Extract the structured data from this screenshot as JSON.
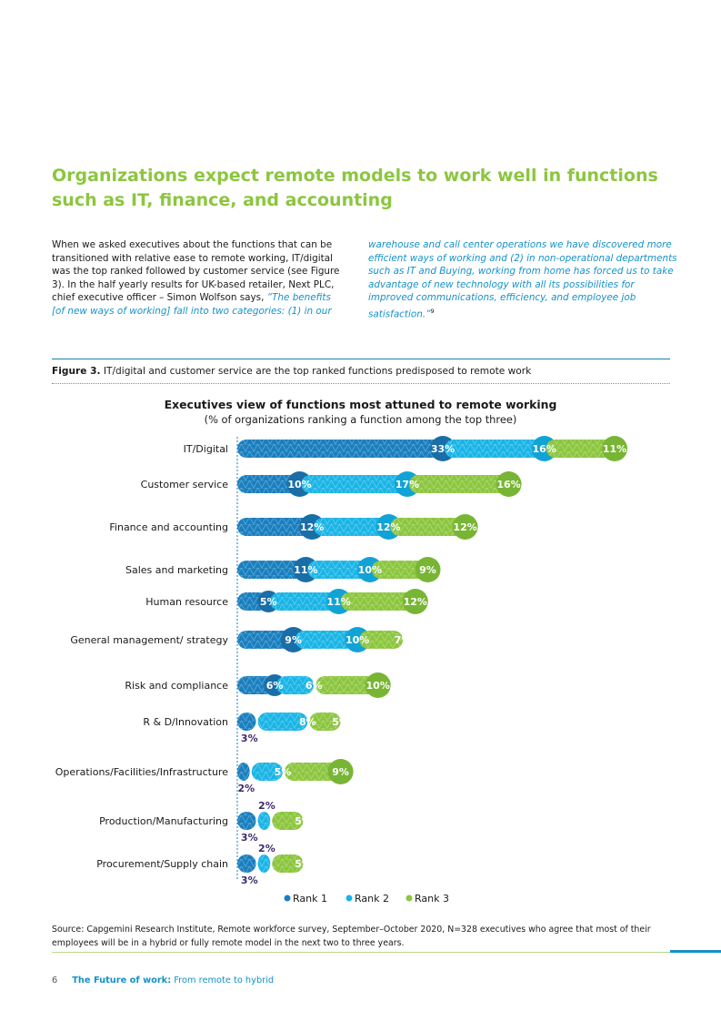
{
  "heading": "Organizations expect remote models to work well in functions such as IT, finance, and accounting",
  "body": {
    "left_text": "When we asked executives about the functions that can be transitioned with relative ease to remote working, IT/digital was the top ranked followed by customer service (see Figure 3). In the half yearly results for UK-based retailer, Next PLC, chief executive officer – Simon Wolfson says, ",
    "left_quote": "“The benefits [of new ways of working] fall into two categories: (1) in our",
    "right_quote": "warehouse and call center operations we have discovered more efficient ways of working and (2) in non-operational departments such as IT and Buying, working from home has forced us to take advantage of new technology with all its possibilities for improved communications, efficiency, and employee job satisfaction.”",
    "footnote": "9"
  },
  "figure": {
    "label": "Figure 3.",
    "caption": "IT/digital and customer service are the top ranked functions predisposed to remote work"
  },
  "chart_data": {
    "type": "bar",
    "stacked": true,
    "orientation": "horizontal",
    "title": "Executives view of functions most attuned to remote working",
    "subtitle": "(% of organizations ranking a function among the top three)",
    "unit": "%",
    "categories": [
      "IT/Digital",
      "Customer service",
      "Finance and accounting",
      "Sales and marketing",
      "Human resource",
      "General management/ strategy",
      "Risk and compliance",
      "R & D/Innovation",
      "Operations/Facilities/Infrastructure",
      "Production/Manufacturing",
      "Procurement/Supply chain"
    ],
    "series": [
      {
        "name": "Rank 1",
        "color": "#1a7fbf",
        "values": [
          33,
          10,
          12,
          11,
          5,
          9,
          6,
          3,
          2,
          3,
          3
        ]
      },
      {
        "name": "Rank 2",
        "color": "#1ab5e6",
        "values": [
          16,
          17,
          12,
          10,
          11,
          10,
          6,
          8,
          5,
          2,
          2
        ]
      },
      {
        "name": "Rank 3",
        "color": "#8cc63f",
        "values": [
          11,
          16,
          12,
          9,
          12,
          7,
          10,
          5,
          9,
          5,
          5
        ]
      }
    ],
    "legend": [
      "Rank 1",
      "Rank 2",
      "Rank 3"
    ],
    "legend_position": "bottom-center"
  },
  "source": "Source: Capgemini Research Institute, Remote workforce survey, September–October 2020, N=328 executives who agree that most of their employees will be in a hybrid or fully remote model in the next two to three years.",
  "footer": {
    "page": "6",
    "title_bold": "The Future of work:",
    "title_rest": " From remote to hybrid"
  },
  "colors": {
    "heading": "#8cc63f",
    "accent_blue": "#1591c7",
    "rank1_dark": "#1a6ea8",
    "rank2_dark": "#12a3d6",
    "rank3_dark": "#78b534"
  }
}
